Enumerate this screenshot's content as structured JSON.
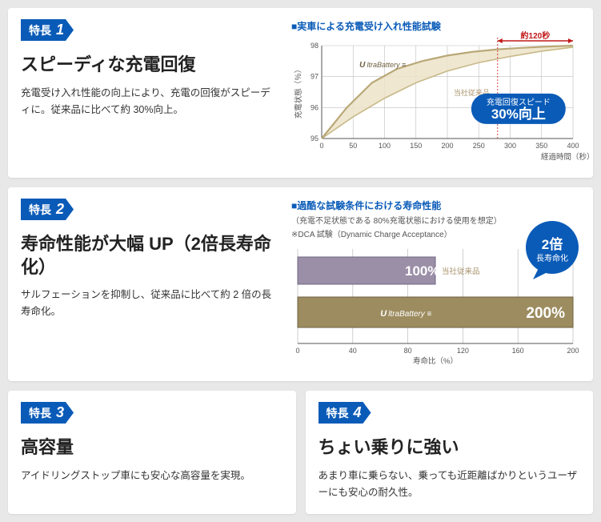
{
  "feature1": {
    "badge_label": "特長",
    "badge_num": "1",
    "title": "スピーディな充電回復",
    "desc": "充電受け入れ性能の向上により、充電の回復がスピーディに。従来品に比べて約 30%向上。",
    "chart": {
      "type": "line",
      "title": "実車による充電受け入れ性能試験",
      "annotation_time": "約120秒",
      "ylabel": "充電状態（％）",
      "xlabel": "経過時間（秒）",
      "xlim": [
        0,
        400
      ],
      "ylim": [
        95,
        98
      ],
      "xticks": [
        0,
        50,
        100,
        150,
        200,
        250,
        300,
        350,
        400
      ],
      "yticks": [
        95,
        96,
        97,
        98
      ],
      "series_ultra_label": "UltraBattery",
      "series_legacy_label": "当社従来品",
      "series_ultra_color": "#b9a878",
      "series_legacy_color": "#c8b988",
      "fill_color": "#ece3c8",
      "grid_color": "#bdbdbd",
      "axis_color": "#555",
      "ultra": [
        [
          0,
          95.0
        ],
        [
          40,
          96.0
        ],
        [
          80,
          96.8
        ],
        [
          120,
          97.25
        ],
        [
          160,
          97.5
        ],
        [
          200,
          97.68
        ],
        [
          240,
          97.8
        ],
        [
          280,
          97.88
        ],
        [
          320,
          97.93
        ],
        [
          360,
          97.97
        ],
        [
          400,
          98.0
        ]
      ],
      "legacy": [
        [
          0,
          95.0
        ],
        [
          50,
          95.7
        ],
        [
          100,
          96.3
        ],
        [
          150,
          96.8
        ],
        [
          200,
          97.18
        ],
        [
          250,
          97.45
        ],
        [
          300,
          97.65
        ],
        [
          350,
          97.82
        ],
        [
          400,
          97.95
        ]
      ],
      "callout_line1": "充電回復スピード",
      "callout_line2": "30%向上",
      "callout_bg": "#0a5bb8",
      "arrow_color": "#c01818"
    }
  },
  "feature2": {
    "badge_label": "特長",
    "badge_num": "2",
    "title": "寿命性能が大幅 UP（2倍長寿命化）",
    "desc": "サルフェーションを抑制し、従来品に比べて約 2 倍の長寿命化。",
    "chart": {
      "type": "bar",
      "title": "過酷な試験条件における寿命性能",
      "subtitle": "（充電不足状態である 80%充電状態における使用を想定）",
      "note": "※DCA 試験（Dynamic Charge Acceptance）",
      "xlabel": "寿命比（%）",
      "xlim": [
        0,
        200
      ],
      "xticks": [
        0,
        40,
        80,
        120,
        160,
        200
      ],
      "bar_legacy_value": 100,
      "bar_legacy_label": "100%",
      "bar_legacy_side": "当社従来品",
      "bar_legacy_color": "#9b8fa8",
      "bar_ultra_value": 200,
      "bar_ultra_label": "200%",
      "bar_ultra_tag": "UltraBattery",
      "bar_ultra_color": "#9c8c5f",
      "grid_color": "#bbb",
      "callout_line1": "2倍",
      "callout_line2": "長寿命化",
      "callout_bg": "#0a5bb8"
    }
  },
  "feature3": {
    "badge_label": "特長",
    "badge_num": "3",
    "title": "高容量",
    "desc": "アイドリングストップ車にも安心な高容量を実現。"
  },
  "feature4": {
    "badge_label": "特長",
    "badge_num": "4",
    "title": "ちょい乗りに強い",
    "desc": "あまり車に乗らない、乗っても近距離ばかりというユーザーにも安心の耐久性。"
  }
}
